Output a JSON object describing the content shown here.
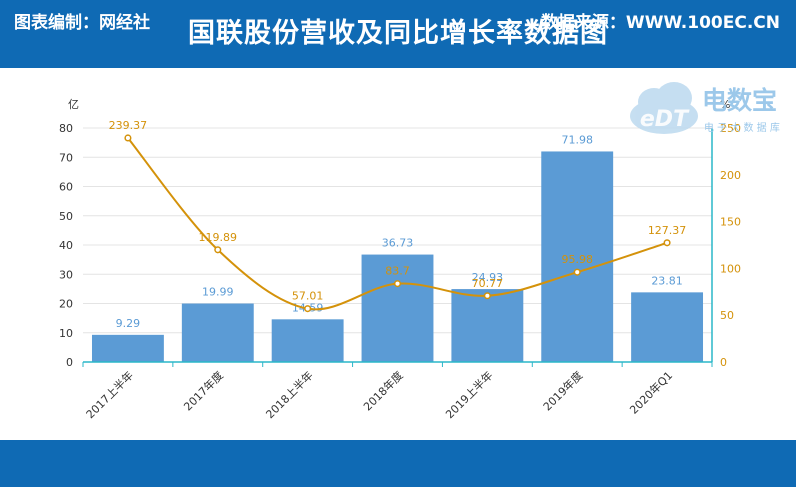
{
  "header": {
    "title": "国联股份营收及同比增长率数据图"
  },
  "footer": {
    "left": "图表编制：网经社",
    "right": "数据来源：WWW.100EC.CN"
  },
  "logo": {
    "mark": "eDT",
    "name": "电数宝",
    "tagline": "电 子 大 数 据 库"
  },
  "colors": {
    "bar": "#5b9bd5",
    "line": "#d4920a",
    "bar_label": "#5b9bd5",
    "line_label": "#d4920a",
    "axis_line": "#2ab7c9"
  },
  "chart_data": {
    "type": "bar",
    "categories": [
      "2017上半年",
      "2017年度",
      "2018上半年",
      "2018年度",
      "2019上半年",
      "2019年度",
      "2020年Q1"
    ],
    "series": [
      {
        "type": "bar",
        "axis": "left",
        "values": [
          9.29,
          19.99,
          14.59,
          36.73,
          24.93,
          71.98,
          23.81
        ],
        "labels": [
          "9.29",
          "19.99",
          "14.59",
          "36.73",
          "24.93",
          "71.98",
          "23.81"
        ]
      },
      {
        "type": "line",
        "axis": "right",
        "values": [
          239.37,
          119.89,
          57.01,
          83.7,
          70.77,
          95.98,
          127.37
        ],
        "labels": [
          "239.37",
          "119.89",
          "57.01",
          "83.7",
          "70.77",
          "95.98",
          "127.37"
        ]
      }
    ],
    "ylabel": "亿",
    "y2label": "%",
    "ylim": [
      0,
      80
    ],
    "y2lim": [
      0,
      250
    ],
    "yticks": [
      0,
      10,
      20,
      30,
      40,
      50,
      60,
      70,
      80
    ],
    "y2ticks": [
      0,
      50,
      100,
      150,
      200,
      250
    ],
    "grid": true
  }
}
